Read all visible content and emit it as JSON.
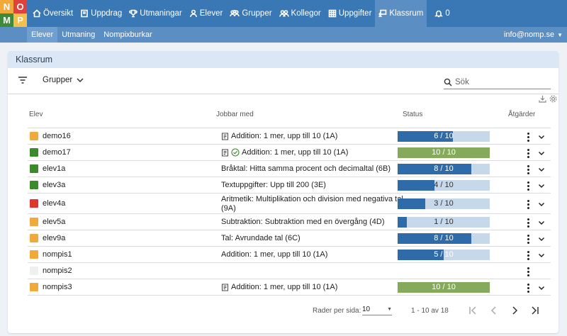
{
  "logo": {
    "letters": [
      "N",
      "O",
      "M",
      "P"
    ]
  },
  "nav": {
    "items": [
      {
        "label": "Översikt",
        "icon": "home-icon"
      },
      {
        "label": "Uppdrag",
        "icon": "book-icon"
      },
      {
        "label": "Utmaningar",
        "icon": "trophy-icon"
      },
      {
        "label": "Elever",
        "icon": "person-icon"
      },
      {
        "label": "Grupper",
        "icon": "people-icon"
      },
      {
        "label": "Kollegor",
        "icon": "colleagues-icon"
      },
      {
        "label": "Uppgifter",
        "icon": "grid-icon"
      },
      {
        "label": "Klassrum",
        "icon": "classroom-icon",
        "active": true
      }
    ],
    "notifications": "0"
  },
  "subnav": {
    "items": [
      "Elever",
      "Utmaning",
      "Nompixburkar"
    ],
    "user": "info@nomp.se"
  },
  "card": {
    "title": "Klassrum"
  },
  "toolbar": {
    "groups_label": "Grupper",
    "search_placeholder": "Sök"
  },
  "table": {
    "headers": {
      "student": "Elev",
      "working": "Jobbar med",
      "status": "Status",
      "actions": "Åtgärder"
    },
    "rows": [
      {
        "name": "demo16",
        "color": "#f2a93b",
        "task": "Addition: 1 mer, upp till 10 (1A)",
        "book": true,
        "check": false,
        "done": 6,
        "total": 10,
        "status": "6 / 10"
      },
      {
        "name": "demo17",
        "color": "#3d8a2c",
        "task": "Addition: 1 mer, upp till 10 (1A)",
        "book": true,
        "check": true,
        "done": 10,
        "total": 10,
        "status": "10 / 10"
      },
      {
        "name": "elev1a",
        "color": "#3d8a2c",
        "task": "Bråktal: Hitta samma procent och decimaltal (6B)",
        "book": false,
        "check": false,
        "done": 8,
        "total": 10,
        "status": "8 / 10"
      },
      {
        "name": "elev3a",
        "color": "#3d8a2c",
        "task": "Textuppgifter: Upp till 200 (3E)",
        "book": false,
        "check": false,
        "done": 4,
        "total": 10,
        "status": "4 / 10"
      },
      {
        "name": "elev4a",
        "color": "#e0352b",
        "task": "Aritmetik: Multiplikation och division med negativa tal",
        "task2": "(9A)",
        "book": false,
        "check": false,
        "done": 3,
        "total": 10,
        "status": "3 / 10"
      },
      {
        "name": "elev5a",
        "color": "#f2a93b",
        "task": "Subtraktion: Subtraktion med en övergång (4D)",
        "book": false,
        "check": false,
        "done": 1,
        "total": 10,
        "status": "1 / 10"
      },
      {
        "name": "elev9a",
        "color": "#f2a93b",
        "task": "Tal: Avrundade tal (6C)",
        "book": false,
        "check": false,
        "done": 8,
        "total": 10,
        "status": "8 / 10"
      },
      {
        "name": "nompis1",
        "color": "#f2a93b",
        "task": "Addition: 1 mer, upp till 10 (1A)",
        "book": false,
        "check": false,
        "done": 5,
        "total": 10,
        "status": "5 / 10"
      },
      {
        "name": "nompis2",
        "color": "#f0f0f0",
        "task": "",
        "book": false,
        "check": false,
        "done": null,
        "total": null,
        "status": ""
      },
      {
        "name": "nompis3",
        "color": "#f2a93b",
        "task": "Addition: 1 mer, upp till 10 (1A)",
        "book": true,
        "check": false,
        "done": 10,
        "total": 10,
        "status": "10 / 10"
      }
    ]
  },
  "pagination": {
    "rows_per_page_label": "Rader per sida:",
    "rows_per_page": "10",
    "range": "1 - 10 av 18"
  },
  "colors": {
    "nav": "#3a78b5",
    "subnav": "#5b8fc4",
    "bar_fill": "#2e6ba8",
    "bar_bg": "#c6d8ea",
    "bar_done": "#85aa5b"
  }
}
